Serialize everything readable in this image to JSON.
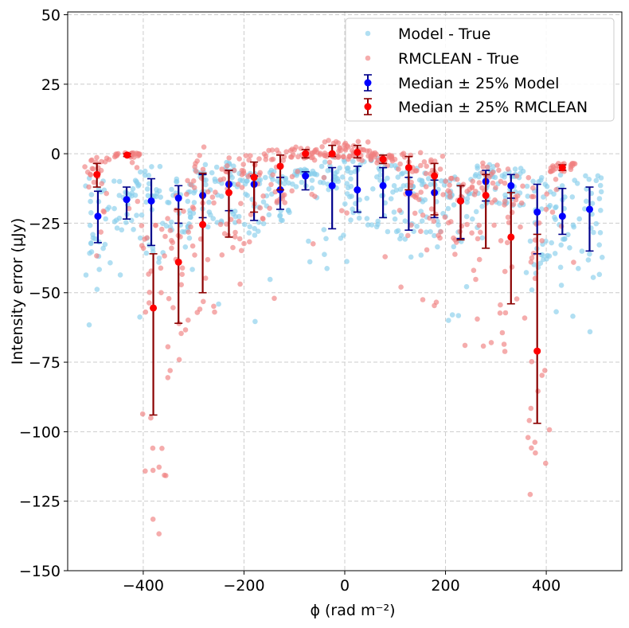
{
  "chart_data": {
    "type": "scatter",
    "title": "",
    "xlabel": "ϕ (rad m⁻²)",
    "ylabel": "Intensity error (μJy)",
    "xlim": [
      -550,
      550
    ],
    "ylim": [
      -150,
      51
    ],
    "xticks": [
      -400,
      -200,
      0,
      200,
      400
    ],
    "yticks": [
      50,
      25,
      0,
      -25,
      -50,
      -75,
      -100,
      -125,
      -150
    ],
    "grid": true,
    "legend_position": "top-right",
    "colors": {
      "model_scatter": "#87ceeb",
      "rmclean_scatter": "#f08080",
      "model_median": "#0000ff",
      "model_err": "#00008b",
      "rmclean_median": "#ff0000",
      "rmclean_err": "#8b0000"
    },
    "legend": [
      {
        "label": "Model - True",
        "kind": "scatter",
        "color": "#87ceeb"
      },
      {
        "label": "RMCLEAN - True",
        "kind": "scatter",
        "color": "#f08080"
      },
      {
        "label": "Median ± 25% Model",
        "kind": "errorbar",
        "color": "#0000ff",
        "ecolor": "#00008b"
      },
      {
        "label": "Median ± 25% RMCLEAN",
        "kind": "errorbar",
        "color": "#ff0000",
        "ecolor": "#8b0000"
      }
    ],
    "series": [
      {
        "name": "Median ± 25% Model",
        "x": [
          -490,
          -433,
          -384,
          -330,
          -282,
          -230,
          -180,
          -128,
          -78,
          -25,
          25,
          76,
          127,
          178,
          230,
          280,
          330,
          382,
          432,
          486
        ],
        "y": [
          -22.5,
          -16.5,
          -17,
          -16,
          -15,
          -11,
          -11,
          -13,
          -8,
          -11.5,
          -13,
          -11.5,
          -14,
          -14,
          -17,
          -10,
          -11.5,
          -21,
          -22.5,
          -20
        ],
        "lower": [
          -32,
          -23.5,
          -33,
          -25,
          -23,
          -20.5,
          -24,
          -20,
          -13,
          -27,
          -21,
          -23,
          -27.5,
          -23,
          -30.5,
          -17,
          -16,
          -36,
          -29,
          -35
        ],
        "upper": [
          -13.5,
          -12,
          -9,
          -11.5,
          -7.5,
          -6,
          -8,
          -8.5,
          -6.5,
          -5,
          -4.5,
          -5,
          -8.5,
          -9.5,
          -11.5,
          -6,
          -7.5,
          -11,
          -12.5,
          -12
        ]
      },
      {
        "name": "Median ± 25% RMCLEAN",
        "x": [
          -492,
          -432,
          -380,
          -330,
          -282,
          -230,
          -180,
          -128,
          -78,
          -25,
          25,
          76,
          127,
          178,
          230,
          280,
          330,
          382,
          432
        ],
        "y": [
          -7.5,
          -0.5,
          -55.5,
          -39,
          -25.5,
          -14,
          -8.5,
          -4.5,
          0,
          0,
          0.5,
          -2,
          -5,
          -8,
          -17,
          -15,
          -30,
          -71,
          -5
        ],
        "lower": [
          -12,
          -1,
          -94,
          -61,
          -50,
          -30,
          -21,
          -13,
          -1.5,
          -1,
          -1.5,
          -3.5,
          -13,
          -22,
          -31,
          -34,
          -54,
          -97,
          -6
        ],
        "upper": [
          -3.5,
          0,
          -36,
          -20,
          -7,
          -6,
          -3,
          -0.5,
          1.5,
          3,
          3,
          -0.5,
          -1,
          -3.5,
          -11.5,
          -7.5,
          -14,
          -29,
          -4
        ]
      }
    ]
  }
}
